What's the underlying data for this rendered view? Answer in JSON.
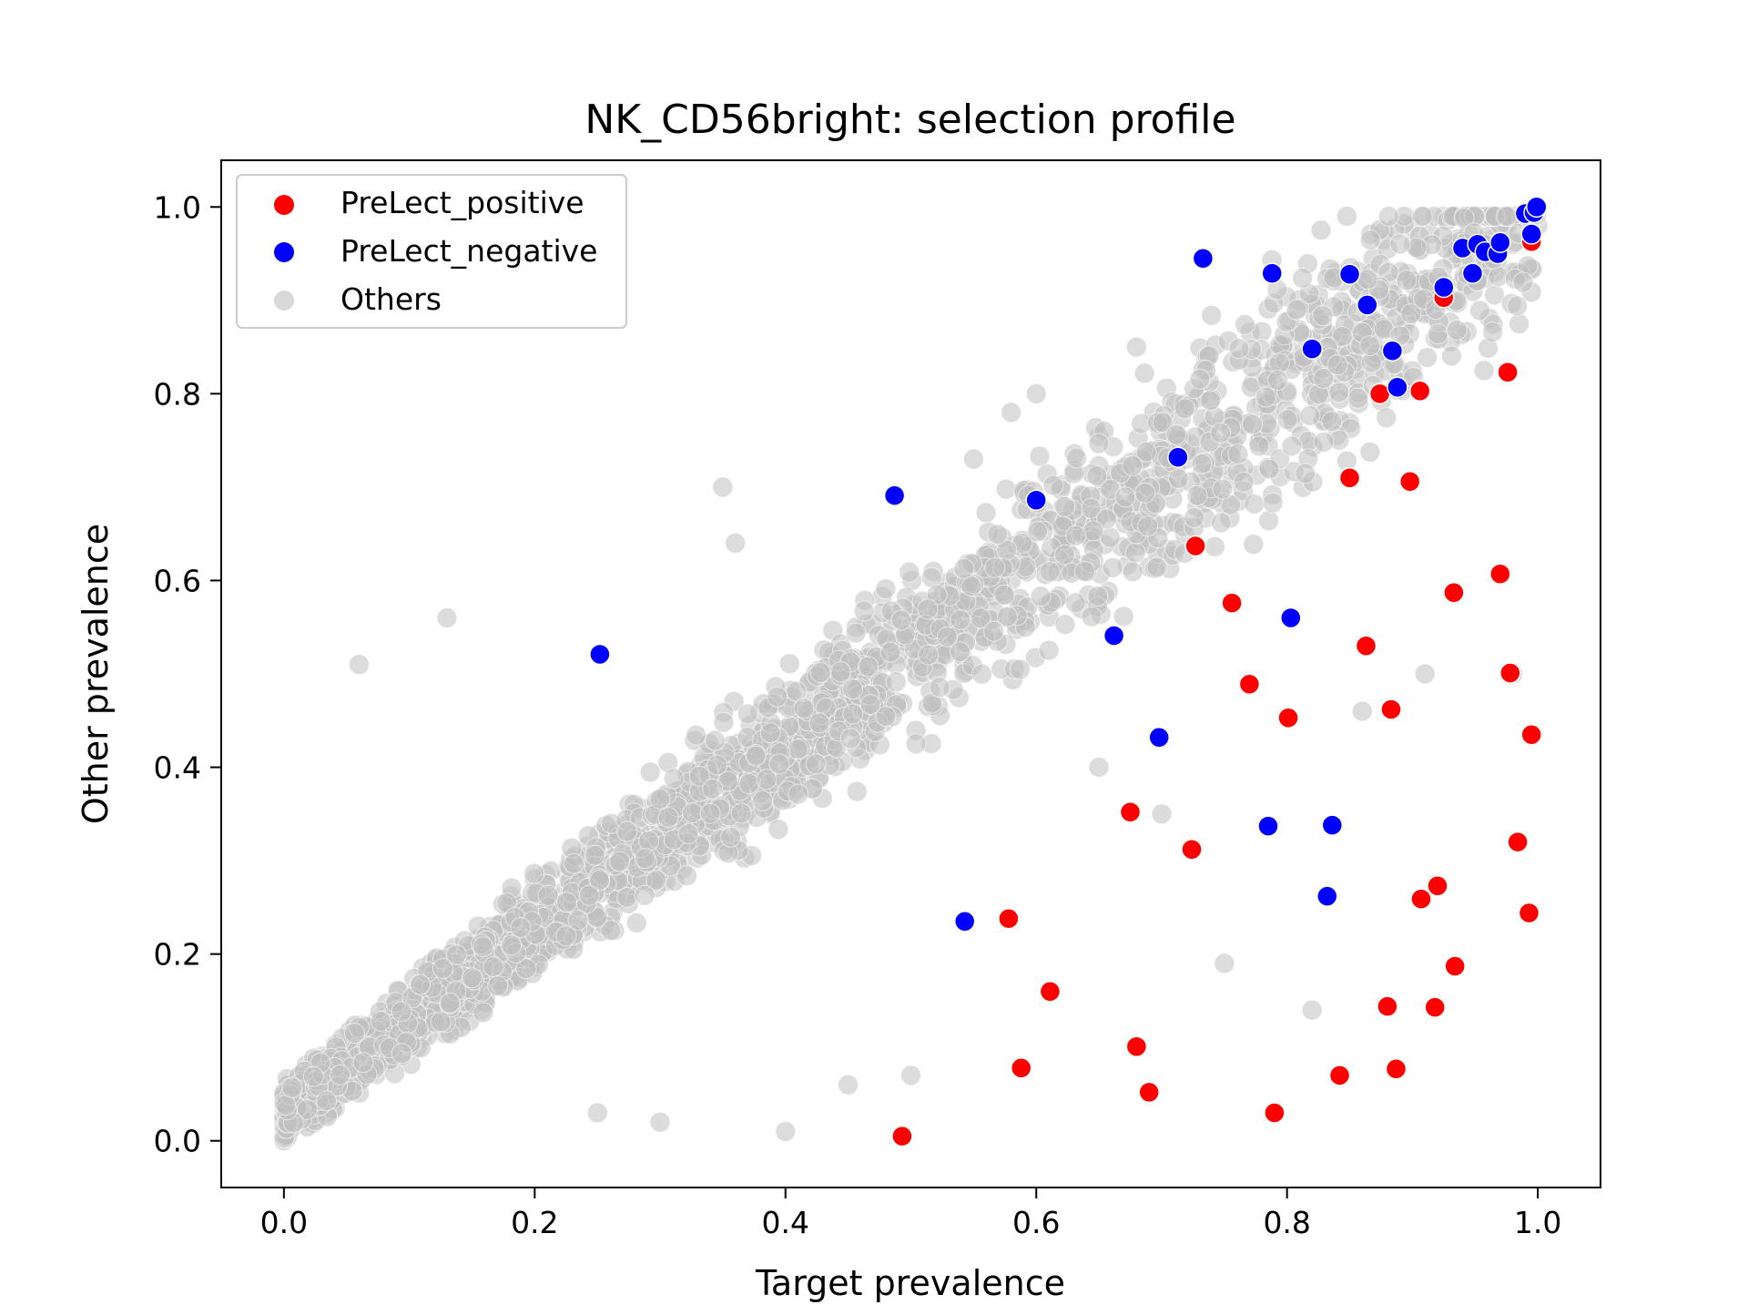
{
  "chart_data": {
    "type": "scatter",
    "title": "NK_CD56bright: selection profile",
    "xlabel": "Target prevalence",
    "ylabel": "Other prevalence",
    "xlim": [
      -0.05,
      1.05
    ],
    "ylim": [
      -0.05,
      1.05
    ],
    "xticks": [
      0.0,
      0.2,
      0.4,
      0.6,
      0.8,
      1.0
    ],
    "yticks": [
      0.0,
      0.2,
      0.4,
      0.6,
      0.8,
      1.0
    ],
    "xtick_labels": [
      "0.0",
      "0.2",
      "0.4",
      "0.6",
      "0.8",
      "1.0"
    ],
    "ytick_labels": [
      "0.0",
      "0.2",
      "0.4",
      "0.6",
      "0.8",
      "1.0"
    ],
    "grid": false,
    "legend_position": "top-left",
    "series": [
      {
        "name": "Others",
        "color": "#c0c0c0",
        "points": "dense cloud along the diagonal from (0,0) to (1,1)",
        "x": [
          0.0,
          0.01,
          0.02,
          0.03,
          0.04,
          0.05,
          0.06,
          0.07,
          0.08,
          0.1,
          0.12,
          0.14,
          0.16,
          0.18,
          0.2,
          0.22,
          0.24,
          0.26,
          0.28,
          0.3,
          0.32,
          0.34,
          0.36,
          0.38,
          0.4,
          0.42,
          0.44,
          0.46,
          0.48,
          0.5,
          0.52,
          0.54,
          0.56,
          0.58,
          0.6,
          0.62,
          0.64,
          0.66,
          0.68,
          0.7,
          0.72,
          0.74,
          0.76,
          0.78,
          0.8,
          0.82,
          0.84,
          0.86,
          0.88,
          0.9,
          0.92,
          0.94,
          0.96,
          0.98,
          1.0,
          0.06,
          0.13,
          0.35,
          0.36,
          0.58,
          0.6,
          0.68,
          0.8,
          0.75,
          0.82,
          0.86,
          0.91,
          0.98,
          0.55,
          0.4,
          0.25,
          0.3,
          0.45,
          0.5,
          0.65,
          0.7
        ],
        "y": [
          0.0,
          0.02,
          0.03,
          0.05,
          0.06,
          0.07,
          0.08,
          0.1,
          0.11,
          0.13,
          0.16,
          0.18,
          0.2,
          0.22,
          0.24,
          0.26,
          0.28,
          0.3,
          0.32,
          0.34,
          0.36,
          0.38,
          0.4,
          0.42,
          0.44,
          0.46,
          0.48,
          0.5,
          0.52,
          0.54,
          0.55,
          0.57,
          0.59,
          0.6,
          0.62,
          0.64,
          0.66,
          0.68,
          0.7,
          0.72,
          0.73,
          0.75,
          0.77,
          0.79,
          0.8,
          0.82,
          0.84,
          0.86,
          0.87,
          0.89,
          0.9,
          0.92,
          0.94,
          0.96,
          0.98,
          0.51,
          0.56,
          0.7,
          0.64,
          0.78,
          0.8,
          0.85,
          0.85,
          0.19,
          0.14,
          0.46,
          0.5,
          0.5,
          0.73,
          0.01,
          0.03,
          0.02,
          0.06,
          0.07,
          0.4,
          0.35
        ]
      },
      {
        "name": "PreLect_positive",
        "color": "#ff0000",
        "x": [
          0.493,
          0.578,
          0.588,
          0.611,
          0.675,
          0.68,
          0.69,
          0.724,
          0.727,
          0.756,
          0.77,
          0.79,
          0.801,
          0.842,
          0.85,
          0.863,
          0.874,
          0.88,
          0.883,
          0.887,
          0.898,
          0.906,
          0.907,
          0.918,
          0.92,
          0.925,
          0.933,
          0.934,
          0.97,
          0.976,
          0.978,
          0.984,
          0.993,
          0.995,
          0.995
        ],
        "y": [
          0.005,
          0.238,
          0.078,
          0.16,
          0.352,
          0.101,
          0.052,
          0.312,
          0.637,
          0.576,
          0.489,
          0.03,
          0.453,
          0.07,
          0.71,
          0.53,
          0.8,
          0.144,
          0.462,
          0.077,
          0.706,
          0.803,
          0.259,
          0.143,
          0.273,
          0.903,
          0.587,
          0.187,
          0.607,
          0.823,
          0.501,
          0.32,
          0.244,
          0.435,
          0.963
        ]
      },
      {
        "name": "PreLect_negative",
        "color": "#0000ff",
        "x": [
          0.252,
          0.487,
          0.543,
          0.6,
          0.662,
          0.698,
          0.713,
          0.733,
          0.785,
          0.788,
          0.803,
          0.82,
          0.832,
          0.836,
          0.85,
          0.864,
          0.884,
          0.888,
          0.925,
          0.94,
          0.948,
          0.952,
          0.958,
          0.968,
          0.97,
          0.99,
          0.995,
          0.997,
          0.999
        ],
        "y": [
          0.521,
          0.691,
          0.235,
          0.686,
          0.541,
          0.432,
          0.732,
          0.945,
          0.337,
          0.929,
          0.56,
          0.848,
          0.262,
          0.338,
          0.928,
          0.895,
          0.846,
          0.807,
          0.914,
          0.956,
          0.929,
          0.96,
          0.952,
          0.95,
          0.962,
          0.993,
          0.971,
          0.994,
          1.0
        ]
      }
    ],
    "legend": [
      {
        "label": "PreLect_positive",
        "color": "#ff0000"
      },
      {
        "label": "PreLect_negative",
        "color": "#0000ff"
      },
      {
        "label": "Others",
        "color": "#c0c0c0"
      }
    ]
  }
}
